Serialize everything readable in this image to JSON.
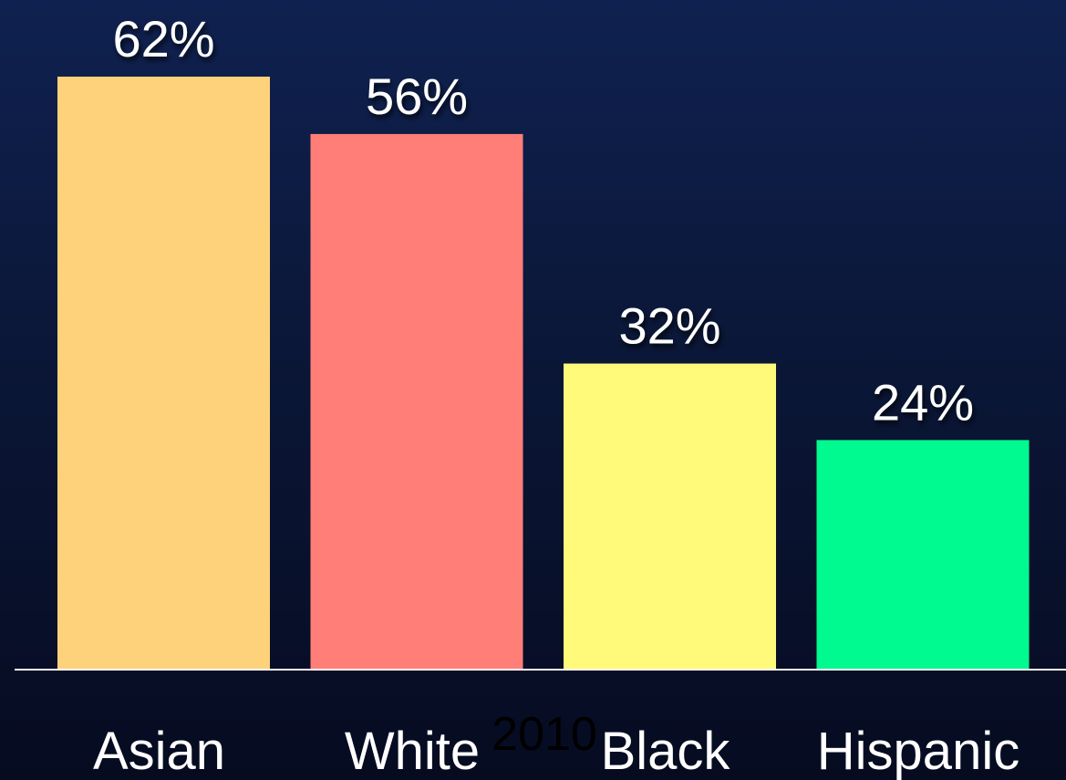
{
  "chart_data": {
    "type": "bar",
    "categories": [
      "Asian",
      "White",
      "Black",
      "Hispanic"
    ],
    "values": [
      62,
      56,
      32,
      24
    ],
    "value_labels": [
      "62%",
      "56%",
      "32%",
      "24%"
    ],
    "colors": [
      "#fdd27b",
      "#ff7f78",
      "#fffa7a",
      "#00fa8f"
    ],
    "xlabel": "2010",
    "ylabel": "",
    "ylim": [
      0,
      70
    ],
    "grid": false,
    "background": "#0b1738",
    "axis_color": "#ffffff"
  }
}
